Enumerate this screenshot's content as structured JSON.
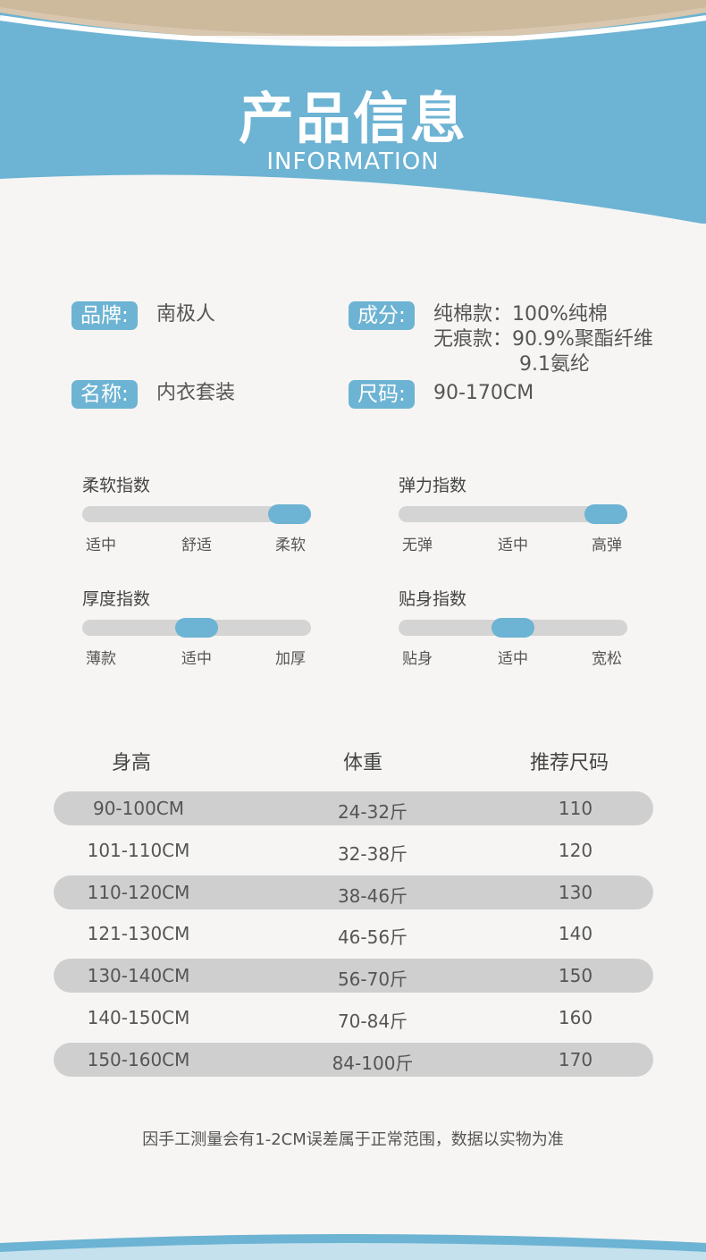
{
  "header": {
    "title": "产品信息",
    "subtitle": "INFORMATION"
  },
  "info": [
    {
      "label": "品牌:",
      "lines": [
        "南极人"
      ]
    },
    {
      "label": "成分:",
      "lines": [
        "纯棉款：100%纯棉",
        "无痕款：90.9%聚酯纤维",
        "9.1氨纶"
      ]
    },
    {
      "label": "名称:",
      "lines": [
        "内衣套装"
      ]
    },
    {
      "label": "尺码:",
      "lines": [
        "90-170CM"
      ]
    }
  ],
  "indices": [
    {
      "title": "柔软指数",
      "options": [
        "适中",
        "舒适",
        "柔软"
      ],
      "selected": 2
    },
    {
      "title": "弹力指数",
      "options": [
        "无弹",
        "适中",
        "高弹"
      ],
      "selected": 2
    },
    {
      "title": "厚度指数",
      "options": [
        "薄款",
        "适中",
        "加厚"
      ],
      "selected": 1
    },
    {
      "title": "贴身指数",
      "options": [
        "贴身",
        "适中",
        "宽松"
      ],
      "selected": 1
    }
  ],
  "table": {
    "columns": [
      "身高",
      "体重",
      "推荐尺码"
    ],
    "rows": [
      [
        "90-100CM",
        "24-32斤",
        "110"
      ],
      [
        "101-110CM",
        "32-38斤",
        "120"
      ],
      [
        "110-120CM",
        "38-46斤",
        "130"
      ],
      [
        "121-130CM",
        "46-56斤",
        "140"
      ],
      [
        "130-140CM",
        "56-70斤",
        "150"
      ],
      [
        "140-150CM",
        "70-84斤",
        "160"
      ],
      [
        "150-160CM",
        "84-100斤",
        "170"
      ]
    ]
  },
  "note": "因手工测量会有1-2CM误差属于正常范围，数据以实物为准"
}
